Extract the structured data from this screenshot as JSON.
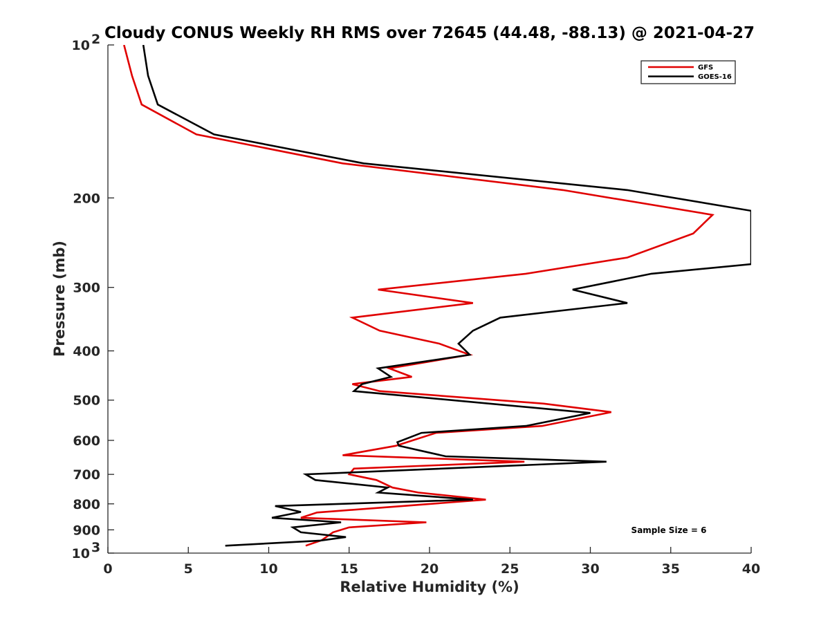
{
  "chart_data": {
    "type": "line",
    "title": "Cloudy CONUS Weekly RH RMS over 72645 (44.48, -88.13) @ 2021-04-27",
    "xlabel": "Relative Humidity (%)",
    "ylabel": "Pressure (mb)",
    "xlim": [
      0,
      40
    ],
    "ylim": [
      100,
      1000
    ],
    "y_scale": "log",
    "y_reversed": true,
    "grid": false,
    "legend_position": "top-right",
    "x_ticks": [
      {
        "value": 0,
        "label": "0"
      },
      {
        "value": 5,
        "label": "5"
      },
      {
        "value": 10,
        "label": "10"
      },
      {
        "value": 15,
        "label": "15"
      },
      {
        "value": 20,
        "label": "20"
      },
      {
        "value": 25,
        "label": "25"
      },
      {
        "value": 30,
        "label": "30"
      },
      {
        "value": 35,
        "label": "35"
      },
      {
        "value": 40,
        "label": "40"
      }
    ],
    "y_ticks": [
      {
        "value": 100,
        "label": "10",
        "sup": "2"
      },
      {
        "value": 200,
        "label": "200"
      },
      {
        "value": 300,
        "label": "300"
      },
      {
        "value": 400,
        "label": "400"
      },
      {
        "value": 500,
        "label": "500"
      },
      {
        "value": 600,
        "label": "600"
      },
      {
        "value": 700,
        "label": "700"
      },
      {
        "value": 800,
        "label": "800"
      },
      {
        "value": 900,
        "label": "900"
      },
      {
        "value": 1000,
        "label": "10",
        "sup": "3"
      }
    ],
    "series": [
      {
        "name": "GFS",
        "color": "#e00000",
        "points": [
          [
            1.0,
            100
          ],
          [
            1.5,
            115
          ],
          [
            2.1,
            131
          ],
          [
            5.5,
            150
          ],
          [
            14.6,
            171
          ],
          [
            28.3,
            193
          ],
          [
            37.6,
            216
          ],
          [
            36.4,
            235
          ],
          [
            32.3,
            262
          ],
          [
            26.0,
            282
          ],
          [
            16.8,
            303
          ],
          [
            22.7,
            322
          ],
          [
            15.2,
            344
          ],
          [
            16.9,
            365
          ],
          [
            20.6,
            387
          ],
          [
            22.5,
            407
          ],
          [
            17.5,
            433
          ],
          [
            18.9,
            450
          ],
          [
            15.2,
            465
          ],
          [
            16.9,
            480
          ],
          [
            27.1,
            508
          ],
          [
            31.3,
            528
          ],
          [
            27.0,
            562
          ],
          [
            20.4,
            580
          ],
          [
            17.9,
            615
          ],
          [
            14.6,
            642
          ],
          [
            25.9,
            661
          ],
          [
            15.3,
            682
          ],
          [
            15.0,
            700
          ],
          [
            16.7,
            718
          ],
          [
            17.7,
            743
          ],
          [
            19.3,
            760
          ],
          [
            23.5,
            785
          ],
          [
            17.9,
            810
          ],
          [
            13.0,
            832
          ],
          [
            12.0,
            852
          ],
          [
            19.8,
            870
          ],
          [
            15.0,
            890
          ],
          [
            14.0,
            910
          ],
          [
            13.3,
            943
          ],
          [
            12.3,
            967
          ]
        ]
      },
      {
        "name": "GOES-16",
        "color": "#000000",
        "points": [
          [
            2.2,
            100
          ],
          [
            2.5,
            115
          ],
          [
            3.1,
            131
          ],
          [
            6.6,
            150
          ],
          [
            15.9,
            171
          ],
          [
            32.3,
            193
          ],
          [
            40.0,
            212
          ],
          [
            40.0,
            270
          ],
          [
            33.8,
            282
          ],
          [
            28.9,
            303
          ],
          [
            32.3,
            322
          ],
          [
            24.4,
            344
          ],
          [
            22.7,
            365
          ],
          [
            21.8,
            387
          ],
          [
            22.5,
            407
          ],
          [
            16.8,
            433
          ],
          [
            17.6,
            450
          ],
          [
            15.8,
            465
          ],
          [
            15.3,
            480
          ],
          [
            30.0,
            530
          ],
          [
            26.0,
            562
          ],
          [
            19.5,
            580
          ],
          [
            18.0,
            605
          ],
          [
            18.1,
            615
          ],
          [
            21.0,
            645
          ],
          [
            31.0,
            661
          ],
          [
            12.3,
            700
          ],
          [
            12.9,
            718
          ],
          [
            17.4,
            743
          ],
          [
            16.8,
            760
          ],
          [
            22.7,
            785
          ],
          [
            10.4,
            808
          ],
          [
            12.0,
            830
          ],
          [
            10.2,
            852
          ],
          [
            14.5,
            870
          ],
          [
            11.5,
            890
          ],
          [
            12.0,
            910
          ],
          [
            14.8,
            930
          ],
          [
            13.2,
            945
          ],
          [
            7.3,
            967
          ]
        ]
      }
    ],
    "legend": [
      {
        "label": "GFS",
        "color": "#e00000"
      },
      {
        "label": "GOES-16",
        "color": "#000000"
      }
    ],
    "annotations": [
      {
        "text": "Sample Size = 6"
      }
    ]
  }
}
